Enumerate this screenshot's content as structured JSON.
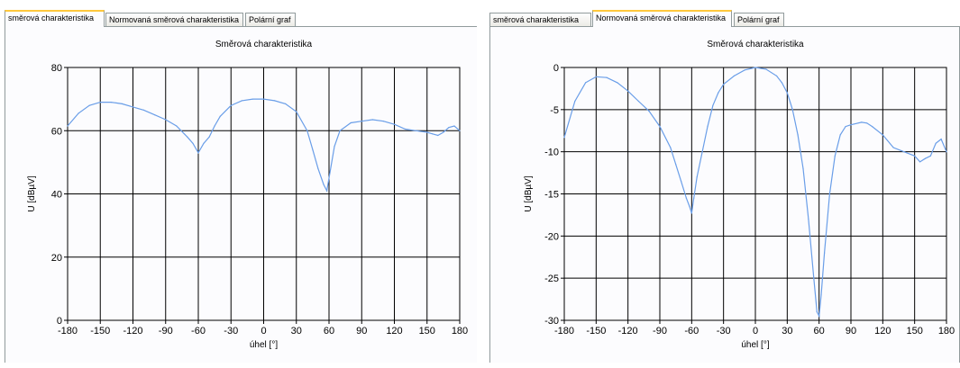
{
  "left": {
    "tabs": [
      {
        "label": "směrová charakteristika",
        "active": true
      },
      {
        "label": "Normovaná směrová charakteristika",
        "active": false
      },
      {
        "label": "Polární graf",
        "active": false
      }
    ]
  },
  "right": {
    "tabs": [
      {
        "label": "směrová charakteristika",
        "active": false
      },
      {
        "label": "Normovaná směrová charakteristika",
        "active": true
      },
      {
        "label": "Polární graf",
        "active": false
      }
    ]
  },
  "colors": {
    "series": "#6a9ee8",
    "accent_tab": "#ffc83c",
    "grid": "#000000"
  },
  "chart_data": [
    {
      "type": "line",
      "title": "Směrová charakteristika",
      "xlabel": "úhel [°]",
      "ylabel": "U [dBµV]",
      "xlim": [
        -180,
        180
      ],
      "ylim": [
        0,
        80
      ],
      "xticks": [
        -180,
        -150,
        -120,
        -90,
        -60,
        -30,
        0,
        30,
        60,
        90,
        120,
        150,
        180
      ],
      "yticks": [
        0,
        20,
        40,
        60,
        80
      ],
      "grid": true,
      "series": [
        {
          "x": [
            -180,
            -170,
            -160,
            -150,
            -140,
            -130,
            -120,
            -110,
            -100,
            -90,
            -80,
            -70,
            -65,
            -60,
            -55,
            -50,
            -45,
            -40,
            -30,
            -20,
            -10,
            0,
            10,
            20,
            30,
            40,
            45,
            50,
            55,
            58,
            60,
            65,
            70,
            80,
            90,
            100,
            110,
            120,
            130,
            140,
            150,
            155,
            160,
            165,
            170,
            175,
            180
          ],
          "y": [
            61.5,
            65.5,
            68,
            69,
            69,
            68.5,
            67.5,
            66.5,
            65,
            63.5,
            61.5,
            58,
            56,
            53,
            56,
            58,
            61.5,
            64.5,
            68,
            69.5,
            70,
            70,
            69.5,
            68.5,
            66,
            60,
            54,
            48,
            43,
            41,
            45,
            55,
            60,
            62.5,
            63,
            63.5,
            63,
            62,
            60.5,
            60,
            59.5,
            59,
            58.5,
            59.5,
            61,
            61.5,
            60
          ]
        }
      ]
    },
    {
      "type": "line",
      "title": "Směrová charakteristika",
      "xlabel": "úhel [°]",
      "ylabel": "U [dBµV]",
      "xlim": [
        -180,
        180
      ],
      "ylim": [
        -30,
        0
      ],
      "xticks": [
        -180,
        -150,
        -120,
        -90,
        -60,
        -30,
        0,
        30,
        60,
        90,
        120,
        150,
        180
      ],
      "yticks": [
        -30,
        -25,
        -20,
        -15,
        -10,
        -5,
        0
      ],
      "grid": true,
      "series": [
        {
          "x": [
            -180,
            -170,
            -160,
            -150,
            -140,
            -130,
            -120,
            -110,
            -100,
            -90,
            -80,
            -75,
            -70,
            -65,
            -62,
            -60,
            -58,
            -55,
            -50,
            -45,
            -40,
            -35,
            -30,
            -20,
            -10,
            0,
            10,
            20,
            25,
            30,
            35,
            40,
            45,
            50,
            55,
            58,
            60,
            62,
            65,
            70,
            75,
            80,
            85,
            90,
            100,
            105,
            110,
            120,
            130,
            140,
            150,
            155,
            160,
            165,
            170,
            175,
            180
          ],
          "y": [
            -8.3,
            -4,
            -1.8,
            -1.1,
            -1.2,
            -1.8,
            -2.8,
            -4,
            -5.2,
            -7,
            -9.5,
            -11.5,
            -13.5,
            -15.5,
            -16.5,
            -17.3,
            -15.5,
            -13,
            -10,
            -7,
            -4.5,
            -3,
            -2,
            -1,
            -0.3,
            0,
            -0.2,
            -1,
            -1.8,
            -3,
            -5,
            -8,
            -12,
            -18,
            -25,
            -29,
            -29.5,
            -27,
            -22,
            -15,
            -10.5,
            -8,
            -7,
            -6.8,
            -6.5,
            -6.6,
            -7,
            -8,
            -9.5,
            -10,
            -10.5,
            -11.2,
            -10.8,
            -10.5,
            -9,
            -8.5,
            -10
          ]
        }
      ]
    }
  ]
}
